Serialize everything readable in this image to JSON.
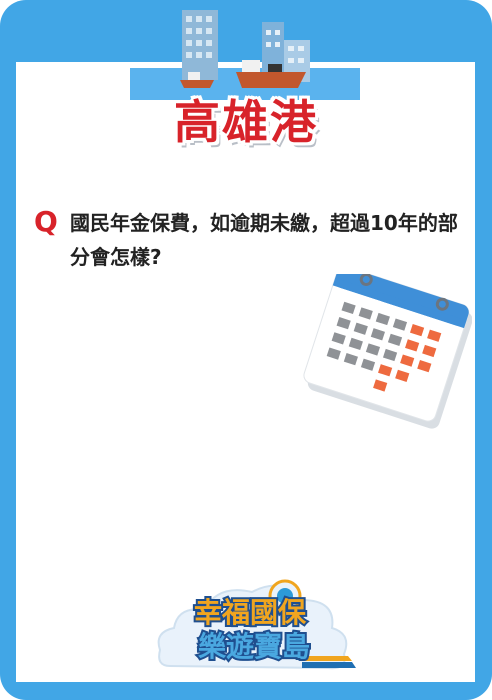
{
  "title": "高雄港",
  "question": {
    "marker": "Q",
    "text": "國民年金保費，如逾期未繳，超過10年的部分會怎樣?"
  },
  "logo": {
    "line1": "幸福國保",
    "line2": "樂遊寶島"
  },
  "colors": {
    "frame_blue": "#41a6e6",
    "title_red": "#d8232a",
    "calendar_blue": "#3f8fd8",
    "calendar_orange": "#ee6a3f"
  }
}
